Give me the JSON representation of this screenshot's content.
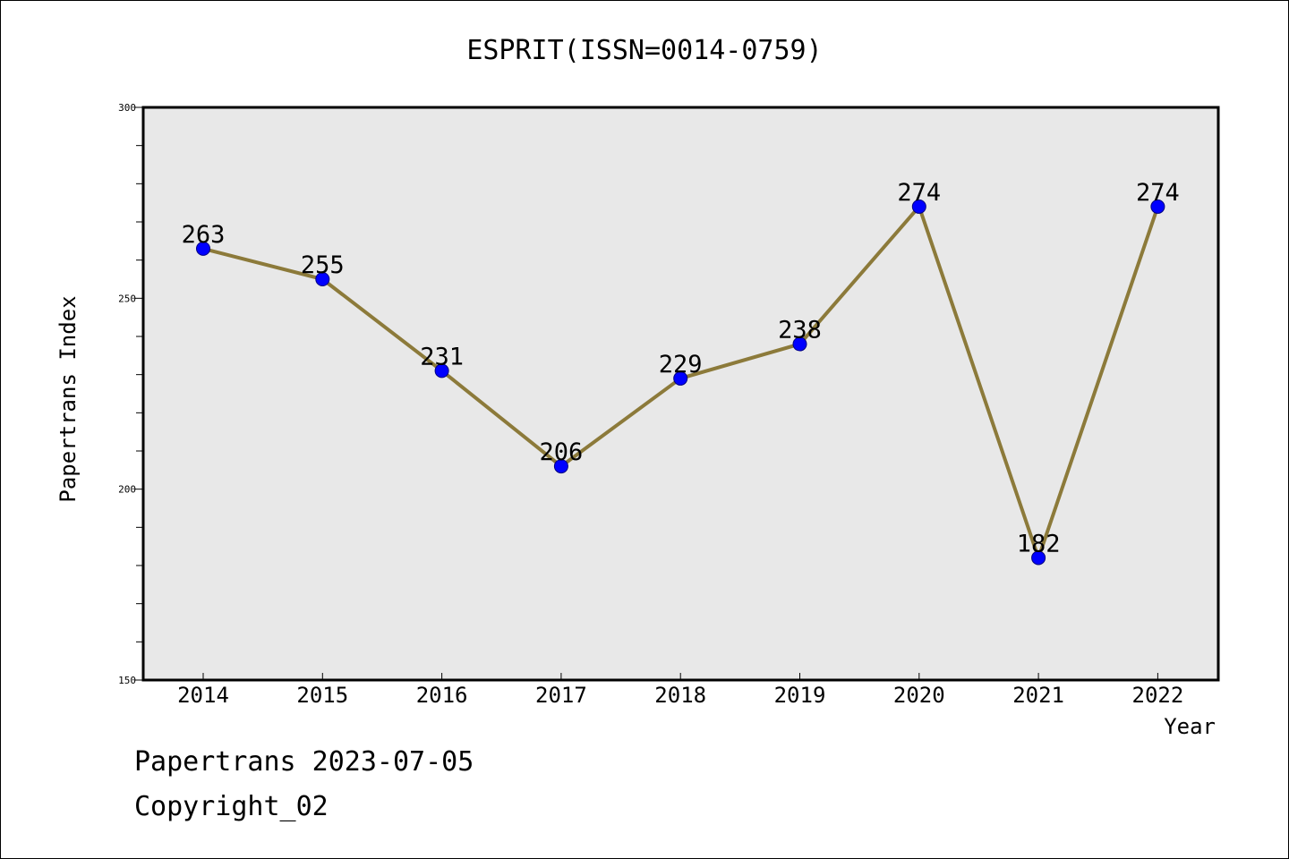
{
  "footer": {
    "line1": "Papertrans 2023-07-05",
    "line2": "Copyright_02"
  },
  "colors": {
    "plot_background": "#e8e8e8",
    "line": "#8c7a3a",
    "marker": "#0000ff",
    "axis": "#000000"
  },
  "chart_data": {
    "type": "line",
    "title": "ESPRIT(ISSN=0014-0759)",
    "xlabel": "Year",
    "ylabel": "Papertrans Index",
    "categories": [
      "2014",
      "2015",
      "2016",
      "2017",
      "2018",
      "2019",
      "2020",
      "2021",
      "2022"
    ],
    "series": [
      {
        "values": [
          263,
          255,
          231,
          206,
          229,
          238,
          274,
          182,
          274
        ]
      }
    ],
    "data_labels": [
      "263",
      "255",
      "231",
      "206",
      "229",
      "238",
      "274",
      "182",
      "274"
    ],
    "ylim": [
      150,
      300
    ],
    "yticks": [
      "150",
      "200",
      "250",
      "300"
    ],
    "grid": false,
    "legend": "none"
  }
}
